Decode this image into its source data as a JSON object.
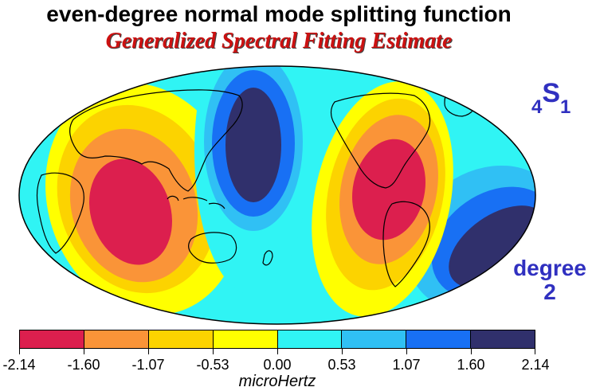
{
  "title": "even-degree normal mode splitting function",
  "subtitle": "Generalized Spectral Fitting Estimate",
  "mode_label": {
    "pre": "4",
    "main": "S",
    "post": "1"
  },
  "degree_label": {
    "line1": "degree",
    "line2": "2"
  },
  "colorbar": {
    "unit": "microHertz",
    "tick_values": [
      "-2.14",
      "-1.60",
      "-1.07",
      "-0.53",
      "0.00",
      "0.53",
      "1.07",
      "1.60",
      "2.14"
    ],
    "colors": [
      "#dc1f4e",
      "#fa9438",
      "#fcd300",
      "#ffff00",
      "#30f4f4",
      "#30c0f4",
      "#1870f4",
      "#30306c"
    ]
  },
  "map": {
    "projection": "Mollweide",
    "background_color": "#30f4f4",
    "anomalies": [
      {
        "name": "western-pacific-high",
        "sign": "positive",
        "colors": [
          "#30c0f4",
          "#1870f4",
          "#30306c"
        ]
      },
      {
        "name": "indian-ocean-low",
        "sign": "negative",
        "colors": [
          "#ffff00",
          "#fcd300",
          "#fa9438",
          "#dc1f4e"
        ]
      },
      {
        "name": "americas-low",
        "sign": "negative",
        "colors": [
          "#ffff00",
          "#fcd300",
          "#fa9438",
          "#dc1f4e"
        ]
      },
      {
        "name": "south-atlantic-high",
        "sign": "positive",
        "colors": [
          "#30c0f4",
          "#1870f4",
          "#30306c"
        ]
      }
    ]
  }
}
